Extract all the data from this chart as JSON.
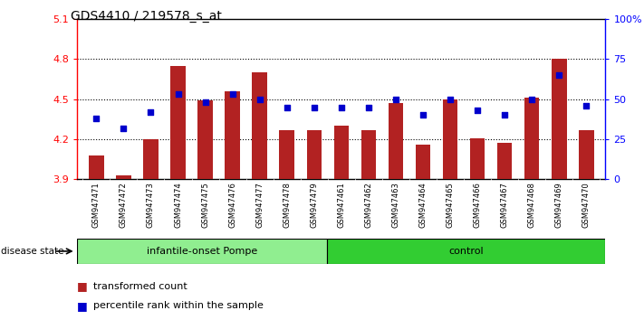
{
  "title": "GDS4410 / 219578_s_at",
  "samples": [
    "GSM947471",
    "GSM947472",
    "GSM947473",
    "GSM947474",
    "GSM947475",
    "GSM947476",
    "GSM947477",
    "GSM947478",
    "GSM947479",
    "GSM947461",
    "GSM947462",
    "GSM947463",
    "GSM947464",
    "GSM947465",
    "GSM947466",
    "GSM947467",
    "GSM947468",
    "GSM947469",
    "GSM947470"
  ],
  "bar_values": [
    4.08,
    3.93,
    4.2,
    4.75,
    4.49,
    4.56,
    4.7,
    4.27,
    4.27,
    4.3,
    4.27,
    4.47,
    4.16,
    4.5,
    4.21,
    4.17,
    4.51,
    4.8,
    4.27
  ],
  "dot_values": [
    38,
    32,
    42,
    53,
    48,
    53,
    50,
    45,
    45,
    45,
    45,
    50,
    40,
    50,
    43,
    40,
    50,
    65,
    46
  ],
  "ylim_left": [
    3.9,
    5.1
  ],
  "ylim_right": [
    0,
    100
  ],
  "yticks_left": [
    3.9,
    4.2,
    4.5,
    4.8,
    5.1
  ],
  "yticks_right": [
    0,
    25,
    50,
    75,
    100
  ],
  "ytick_labels_right": [
    "0",
    "25",
    "50",
    "75",
    "100%"
  ],
  "group1_label": "infantile-onset Pompe",
  "group2_label": "control",
  "group1_count": 9,
  "group2_count": 10,
  "bar_color": "#b22222",
  "dot_color": "#0000cc",
  "bar_baseline": 3.9,
  "group1_color": "#90EE90",
  "group2_color": "#32CD32",
  "disease_state_label": "disease state",
  "legend1": "transformed count",
  "legend2": "percentile rank within the sample",
  "tick_area_color": "#c8c8c8"
}
